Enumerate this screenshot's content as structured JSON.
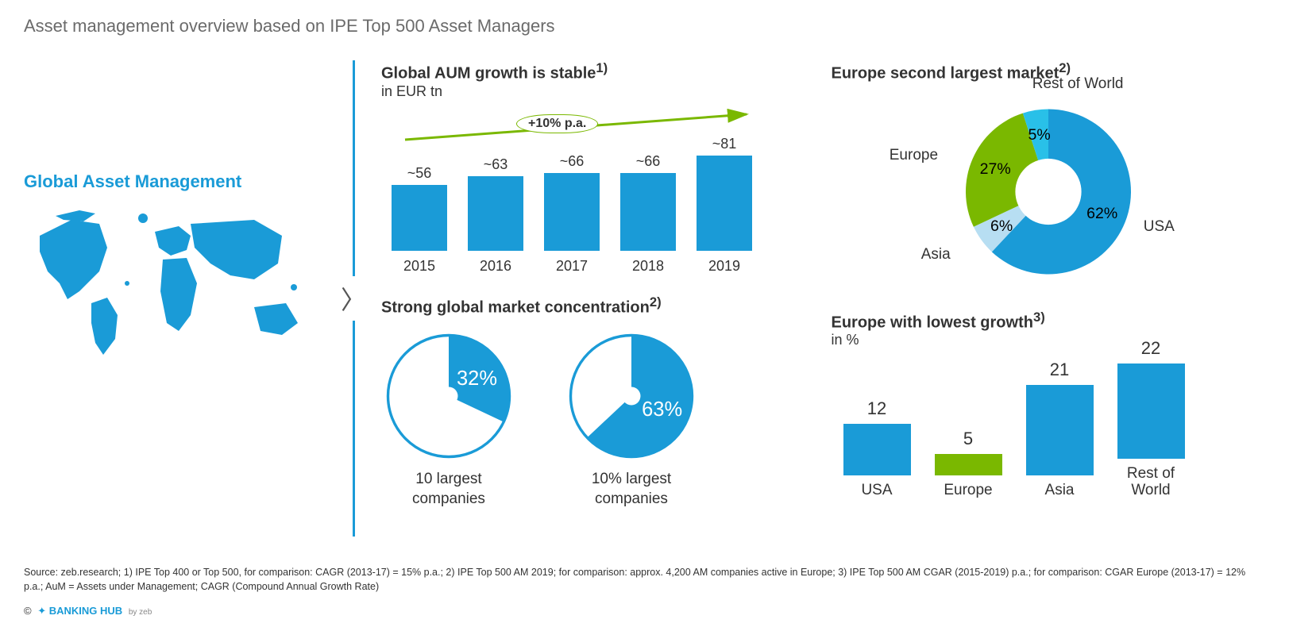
{
  "page": {
    "title": "Asset management overview based on IPE Top 500 Asset Managers",
    "source": "Source: zeb.research; 1) IPE Top 400 or Top 500, for comparison: CAGR (2013-17) = 15% p.a.; 2) IPE Top 500 AM 2019; for comparison: approx. 4,200 AM companies active in Europe; 3) IPE Top 500 AM CGAR (2015-2019) p.a.; for comparison: CGAR Europe (2013-17) = 12% p.a.; AuM = Assets under Management; CAGR (Compound Annual Growth Rate)",
    "footer_brand": "BANKING HUB",
    "footer_by": "by zeb",
    "background_color": "#ffffff",
    "text_color": "#333333",
    "title_color": "#6b6b6b"
  },
  "left": {
    "title": "Global Asset Management",
    "title_color": "#1a9bd7",
    "map_fill": "#1a9bd7"
  },
  "divider": {
    "line_color": "#1a9bd7",
    "chevron": "〉"
  },
  "aum_chart": {
    "type": "bar",
    "title": "Global AUM growth is stable",
    "title_sup": "1)",
    "subtitle": "in EUR tn",
    "annotation": "+10% p.a.",
    "arrow_color": "#7ab800",
    "bar_color": "#1a9bd7",
    "max_val": 81,
    "years": [
      "2015",
      "2016",
      "2017",
      "2018",
      "2019"
    ],
    "labels": [
      "~56",
      "~63",
      "~66",
      "~66",
      "~81"
    ],
    "values": [
      56,
      63,
      66,
      66,
      81
    ],
    "label_fontsize": 18
  },
  "concentration": {
    "type": "pie",
    "title": "Strong global market concentration",
    "title_sup": "2)",
    "fill_color": "#1a9bd7",
    "ring_color": "#1a9bd7",
    "inner_hole_ratio": 0.15,
    "items": [
      {
        "pct": 32,
        "pct_label": "32%",
        "caption": "10 largest\ncompanies"
      },
      {
        "pct": 63,
        "pct_label": "63%",
        "caption": "10% largest\ncompanies"
      }
    ]
  },
  "donut": {
    "type": "donut",
    "title": "Europe second largest market",
    "title_sup": "2)",
    "inner_radius_ratio": 0.4,
    "segments": [
      {
        "name": "USA",
        "pct": 62,
        "label": "62%",
        "color": "#1a9bd7"
      },
      {
        "name": "Rest of World",
        "pct": 6,
        "label": "6%",
        "color": "#b7def2"
      },
      {
        "name": "Europe",
        "pct": 27,
        "label": "27%",
        "color": "#7ab800"
      },
      {
        "name": "Asia",
        "pct": 5,
        "label": "5%",
        "color": "#29c0e8"
      }
    ]
  },
  "growth": {
    "type": "bar",
    "title": "Europe with lowest growth",
    "title_sup": "3)",
    "subtitle": "in %",
    "max_val": 22,
    "items": [
      {
        "name": "USA",
        "value": 12,
        "color": "#1a9bd7"
      },
      {
        "name": "Europe",
        "value": 5,
        "color": "#7ab800"
      },
      {
        "name": "Asia",
        "value": 21,
        "color": "#1a9bd7"
      },
      {
        "name": "Rest of\nWorld",
        "value": 22,
        "color": "#1a9bd7"
      }
    ]
  }
}
